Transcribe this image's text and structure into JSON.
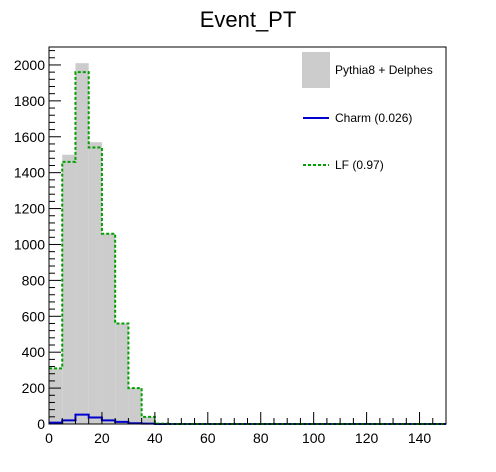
{
  "chart_data": {
    "type": "bar",
    "title": "Event_PT",
    "xlabel": "",
    "ylabel": "",
    "xlim": [
      0,
      150
    ],
    "ylim": [
      0,
      2100
    ],
    "bin_edges": [
      0,
      5,
      10,
      15,
      20,
      25,
      30,
      35,
      40,
      45,
      50,
      55,
      60,
      65,
      70,
      75,
      80,
      85,
      90,
      95,
      100,
      105,
      110,
      115,
      120,
      125,
      130,
      135,
      140,
      145,
      150
    ],
    "x_ticks": [
      "0",
      "20",
      "40",
      "60",
      "80",
      "100",
      "120",
      "140"
    ],
    "y_ticks": [
      "0",
      "200",
      "400",
      "600",
      "800",
      "1000",
      "1200",
      "1400",
      "1600",
      "1800",
      "2000"
    ],
    "legend_position": "top-right",
    "grid": false,
    "series": [
      {
        "name": "Pythia8 + Delphes",
        "style": "filled-histogram",
        "color": "#cccccc",
        "values": [
          310,
          1500,
          2010,
          1570,
          1060,
          560,
          200,
          40,
          2,
          0,
          0,
          0,
          0,
          0,
          0,
          0,
          0,
          0,
          0,
          0,
          0,
          0,
          0,
          0,
          0,
          0,
          0,
          0,
          0,
          0
        ]
      },
      {
        "name": "Charm (0.026)",
        "style": "solid-line",
        "color": "#0000cc",
        "values": [
          8,
          20,
          52,
          36,
          20,
          12,
          4,
          2,
          0,
          0,
          0,
          0,
          0,
          0,
          0,
          0,
          0,
          0,
          0,
          0,
          0,
          0,
          0,
          0,
          0,
          0,
          0,
          0,
          0,
          0
        ]
      },
      {
        "name": "LF (0.97)",
        "style": "dotted-line",
        "color": "#00a000",
        "values": [
          310,
          1460,
          1960,
          1540,
          1060,
          560,
          200,
          40,
          2,
          0,
          0,
          0,
          0,
          0,
          0,
          0,
          0,
          0,
          0,
          0,
          0,
          0,
          0,
          0,
          0,
          0,
          0,
          0,
          0,
          0
        ]
      }
    ]
  }
}
